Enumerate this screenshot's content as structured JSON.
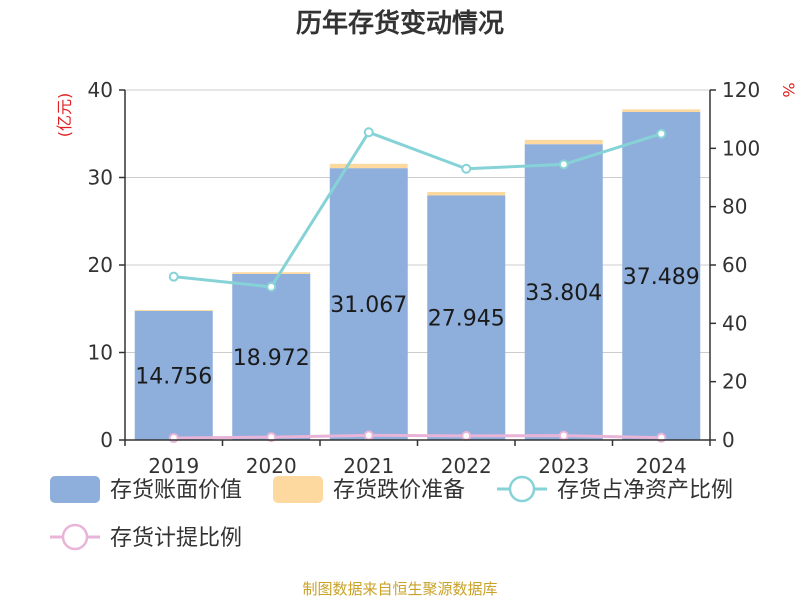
{
  "chart_data": {
    "type": "bar",
    "title": "历年存货变动情况",
    "categories": [
      "2019",
      "2020",
      "2021",
      "2022",
      "2023",
      "2024"
    ],
    "y_left": {
      "unit": "(亿元)",
      "ylim": [
        0,
        40
      ],
      "ticks": [
        "0",
        "10",
        "20",
        "30",
        "40"
      ]
    },
    "y_right": {
      "unit": "%",
      "ylim": [
        0,
        120
      ],
      "ticks": [
        "0",
        "20",
        "40",
        "60",
        "80",
        "100",
        "120"
      ]
    },
    "series": [
      {
        "name": "存货账面价值",
        "type": "bar",
        "axis": "left",
        "stack": "inv",
        "values": [
          14.756,
          18.972,
          31.067,
          27.945,
          33.804,
          37.489
        ],
        "labels": [
          "14.756",
          "18.972",
          "31.067",
          "27.945",
          "33.804",
          "37.489"
        ]
      },
      {
        "name": "存货跌价准备",
        "type": "bar",
        "axis": "left",
        "stack": "inv",
        "values": [
          0.1,
          0.2,
          0.5,
          0.4,
          0.5,
          0.3
        ]
      },
      {
        "name": "存货占净资产比例",
        "type": "line",
        "axis": "right",
        "values": [
          56,
          52.5,
          105.5,
          93,
          94.5,
          105
        ]
      },
      {
        "name": "存货计提比例",
        "type": "line",
        "axis": "right",
        "values": [
          0.7,
          1.0,
          1.6,
          1.4,
          1.5,
          0.8
        ]
      }
    ],
    "grid": true,
    "legend_position": "bottom"
  },
  "colors": {
    "bar_main": "#8eaedb",
    "bar_reserve": "#fdd9a0",
    "line_ratio": "#86d3d7",
    "line_provision": "#e8b4d8",
    "axis": "#333333",
    "grid": "#cccccc"
  },
  "source": "制图数据来自恒生聚源数据库"
}
